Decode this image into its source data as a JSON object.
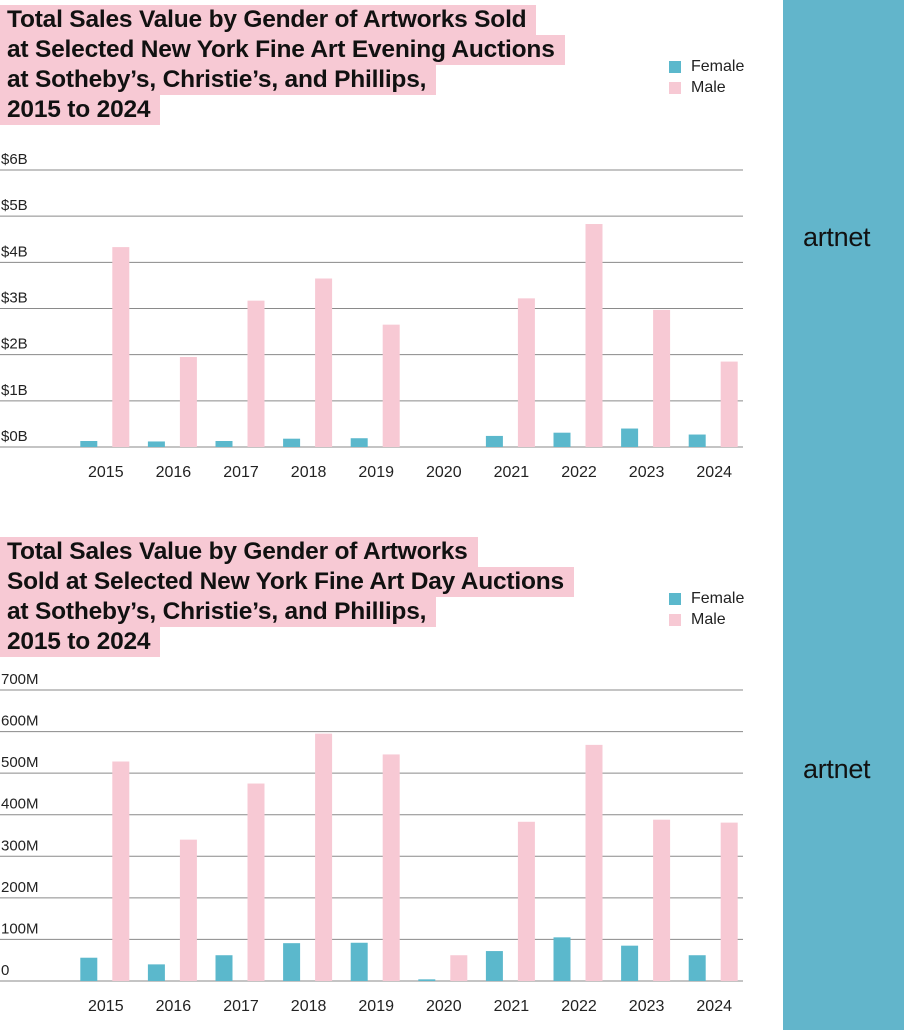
{
  "brand": {
    "logo_text": "artnet",
    "sidebar_color": "#62b5cb"
  },
  "colors": {
    "female": "#5bb8cc",
    "male": "#f7c9d4",
    "title_highlight": "#f7c9d4"
  },
  "legend": {
    "female": "Female",
    "male": "Male"
  },
  "chart_data": [
    {
      "type": "bar",
      "title": "Total Sales Value by Gender of Artworks Sold at Selected New York Fine Art Evening Auctions at Sotheby’s, Christie’s, and Phillips, 2015 to 2024",
      "title_lines": [
        "Total Sales Value by Gender of Artworks Sold",
        "at Selected New York Fine Art Evening Auctions",
        "at Sotheby’s, Christie’s, and Phillips,",
        "2015 to 2024"
      ],
      "categories": [
        "2015",
        "2016",
        "2017",
        "2018",
        "2019",
        "2020",
        "2021",
        "2022",
        "2023",
        "2024"
      ],
      "series": [
        {
          "name": "Female",
          "values": [
            0.13,
            0.12,
            0.13,
            0.18,
            0.19,
            0,
            0.24,
            0.31,
            0.4,
            0.27
          ]
        },
        {
          "name": "Male",
          "values": [
            4.33,
            1.95,
            3.17,
            3.65,
            2.65,
            0,
            3.22,
            4.83,
            2.97,
            1.85
          ]
        }
      ],
      "ylim": [
        0,
        6
      ],
      "yticks": [
        0,
        1,
        2,
        3,
        4,
        5,
        6
      ],
      "ytick_labels": [
        "$0B",
        "$1B",
        "$2B",
        "$3B",
        "$4B",
        "$5B",
        "$6B"
      ],
      "xlabel": "",
      "ylabel": "",
      "grid": true,
      "legend_position": "top-right"
    },
    {
      "type": "bar",
      "title": "Total Sales Value by Gender of Artworks Sold at Selected New York Fine Art Day Auctions at Sotheby’s, Christie’s, and Phillips, 2015 to 2024",
      "title_lines": [
        "Total Sales Value by Gender of Artworks",
        "Sold at Selected New York Fine Art Day Auctions",
        "at Sotheby’s, Christie’s, and Phillips,",
        "2015 to 2024"
      ],
      "categories": [
        "2015",
        "2016",
        "2017",
        "2018",
        "2019",
        "2020",
        "2021",
        "2022",
        "2023",
        "2024"
      ],
      "series": [
        {
          "name": "Female",
          "values": [
            56,
            40,
            62,
            91,
            92,
            4,
            72,
            105,
            85,
            62
          ]
        },
        {
          "name": "Male",
          "values": [
            528,
            340,
            475,
            595,
            545,
            62,
            383,
            568,
            388,
            381
          ]
        }
      ],
      "ylim": [
        0,
        700
      ],
      "yticks": [
        0,
        100,
        200,
        300,
        400,
        500,
        600,
        700
      ],
      "ytick_labels": [
        "0",
        "100M",
        "200M",
        "300M",
        "400M",
        "500M",
        "600M",
        "700M"
      ],
      "xlabel": "",
      "ylabel": "",
      "grid": true,
      "legend_position": "top-right"
    }
  ]
}
